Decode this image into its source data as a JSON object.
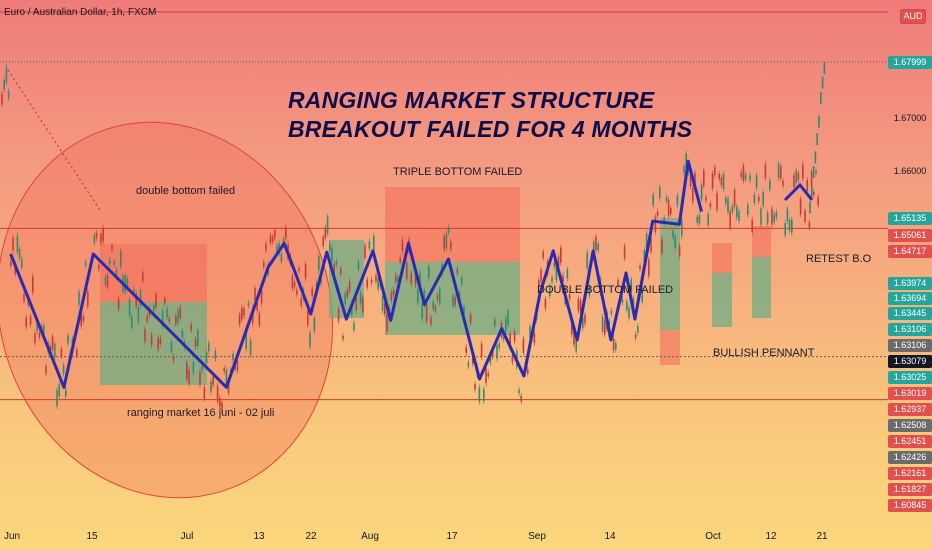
{
  "header": {
    "symbol": "Euro / Australian Dollar, 1h, FXCM",
    "currency": "AUD"
  },
  "annotations": {
    "title_line1": "RANGING MARKET STRUCTURE",
    "title_line2": "BREAKOUT FAILED FOR 4 MONTHS",
    "double_bottom_failed_1": "double bottom failed",
    "triple_bottom_failed": "TRIPLE BOTTOM  FAILED",
    "double_bottom_failed_2": "DOUBLE BOTTOM FAILED",
    "retest": "RETEST B.O",
    "bullish_pennant": "BULLISH PENNANT",
    "ranging_market": "ranging market 16 juni - 02 juli"
  },
  "colors": {
    "pattern_line": "#2b2bb0",
    "red_zone": "#f26a5a",
    "green_zone": "#6fae84",
    "level_line": "#d23a2a"
  },
  "chart_data": {
    "type": "line",
    "title": "",
    "x_ticks": [
      "Jun",
      "15",
      "Jul",
      "13",
      "22",
      "Aug",
      "17",
      "Sep",
      "14",
      "Oct",
      "12",
      "21"
    ],
    "y_ticks": [
      1.66,
      1.67
    ],
    "price_labels": [
      {
        "value": "1.67999",
        "bg": "#26a69a"
      },
      {
        "value": "1.67000",
        "bg": "none"
      },
      {
        "value": "1.66000",
        "bg": "none"
      },
      {
        "value": "1.65135",
        "bg": "#26a69a"
      },
      {
        "value": "1.65061",
        "bg": "#e14f4f"
      },
      {
        "value": "1.64717",
        "bg": "#e14f4f"
      },
      {
        "value": "1.63974",
        "bg": "#26a69a"
      },
      {
        "value": "1.63694",
        "bg": "#26a69a"
      },
      {
        "value": "1.63445",
        "bg": "#26a69a"
      },
      {
        "value": "1.63106",
        "bg": "#26a69a"
      },
      {
        "value": "1.63106",
        "bg": "#6b6b6b"
      },
      {
        "value": "1.63079",
        "bg": "#131722"
      },
      {
        "value": "1.63025",
        "bg": "#26a69a"
      },
      {
        "value": "1.63019",
        "bg": "#e14f4f"
      },
      {
        "value": "1.62937",
        "bg": "#e14f4f"
      },
      {
        "value": "1.62508",
        "bg": "#6b6b6b"
      },
      {
        "value": "1.62451",
        "bg": "#e14f4f"
      },
      {
        "value": "1.62426",
        "bg": "#6b6b6b"
      },
      {
        "value": "1.62161",
        "bg": "#e14f4f"
      },
      {
        "value": "1.61827",
        "bg": "#e14f4f"
      },
      {
        "value": "1.60845",
        "bg": "#e14f4f"
      }
    ],
    "horizontal_levels": [
      1.65135,
      1.63106,
      1.62426
    ],
    "current_price": 1.63079,
    "ylim": [
      1.6052,
      1.6875
    ],
    "pattern_path": [
      [
        0.012,
        1.6473
      ],
      [
        0.072,
        1.6262
      ],
      [
        0.105,
        1.6473
      ],
      [
        0.255,
        1.6262
      ],
      [
        0.302,
        1.6452
      ],
      [
        0.32,
        1.649
      ],
      [
        0.35,
        1.6378
      ],
      [
        0.368,
        1.6476
      ],
      [
        0.39,
        1.637
      ],
      [
        0.42,
        1.6478
      ],
      [
        0.44,
        1.6368
      ],
      [
        0.46,
        1.649
      ],
      [
        0.478,
        1.6393
      ],
      [
        0.505,
        1.6465
      ],
      [
        0.54,
        1.6275
      ],
      [
        0.565,
        1.6355
      ],
      [
        0.59,
        1.628
      ],
      [
        0.608,
        1.641
      ],
      [
        0.623,
        1.6478
      ],
      [
        0.65,
        1.6337
      ],
      [
        0.668,
        1.6478
      ],
      [
        0.688,
        1.6337
      ],
      [
        0.705,
        1.6443
      ],
      [
        0.715,
        1.637
      ],
      [
        0.735,
        1.6525
      ],
      [
        0.765,
        1.652
      ],
      [
        0.775,
        1.662
      ],
      [
        0.79,
        1.654
      ]
    ]
  }
}
